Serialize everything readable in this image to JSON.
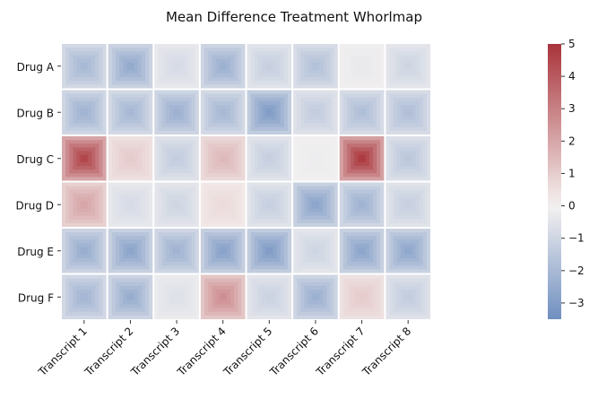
{
  "chart_data": {
    "type": "heatmap",
    "title": "Mean Difference Treatment Whorlmap",
    "rows": [
      "Drug A",
      "Drug B",
      "Drug C",
      "Drug D",
      "Drug E",
      "Drug F"
    ],
    "columns": [
      "Transcript 1",
      "Transcript 2",
      "Transcript 3",
      "Transcript 4",
      "Transcript 5",
      "Transcript 6",
      "Transcript 7",
      "Transcript 8"
    ],
    "values": [
      [
        -2.0,
        -2.5,
        -0.8,
        -2.3,
        -1.2,
        -1.7,
        -0.3,
        -1.0
      ],
      [
        -2.2,
        -2.0,
        -2.3,
        -2.0,
        -3.0,
        -1.3,
        -1.8,
        -1.8
      ],
      [
        4.5,
        1.0,
        -1.3,
        1.5,
        -1.2,
        -0.2,
        4.8,
        -1.5
      ],
      [
        2.0,
        -0.8,
        -1.0,
        0.6,
        -1.2,
        -2.7,
        -2.2,
        -1.2
      ],
      [
        -2.4,
        -2.7,
        -2.2,
        -2.8,
        -3.0,
        -1.0,
        -2.7,
        -2.6
      ],
      [
        -2.1,
        -2.4,
        -0.6,
        2.6,
        -1.1,
        -2.3,
        1.0,
        -1.3
      ]
    ],
    "colorbar": {
      "range": [
        -3.5,
        5
      ],
      "ticks": [
        5,
        4,
        3,
        2,
        1,
        0,
        -1,
        -2,
        -3
      ],
      "tick_labels": [
        "5",
        "4",
        "3",
        "2",
        "1",
        "0",
        "−1",
        "−2",
        "−3"
      ]
    },
    "colors": {
      "negative": "#6f8fc0",
      "zero": "#f5f2f1",
      "positive": "#a9343b"
    }
  }
}
